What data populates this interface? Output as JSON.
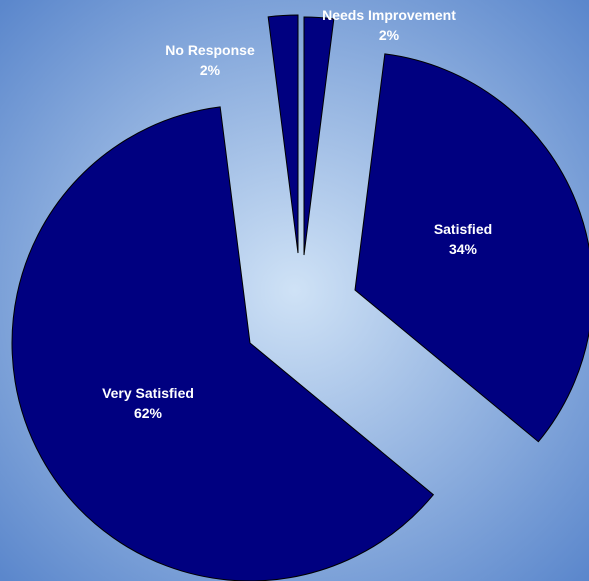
{
  "chart_data": {
    "type": "pie",
    "slices": [
      {
        "name": "Needs Improvement",
        "value": 2,
        "pct_label": "2%"
      },
      {
        "name": "Satisfied",
        "value": 34,
        "pct_label": "34%"
      },
      {
        "name": "Very Satisfied",
        "value": 62,
        "pct_label": "62%"
      },
      {
        "name": "No Response",
        "value": 2,
        "pct_label": "2%"
      }
    ],
    "start_angle_deg": 0,
    "direction": "clockwise",
    "exploded": true,
    "colors": {
      "slice_fill": "#000080",
      "slice_stroke": "#000000",
      "label_text": "#ffffff",
      "background_center": "#cfe2f6",
      "background_edge": "#5b87cc"
    }
  }
}
